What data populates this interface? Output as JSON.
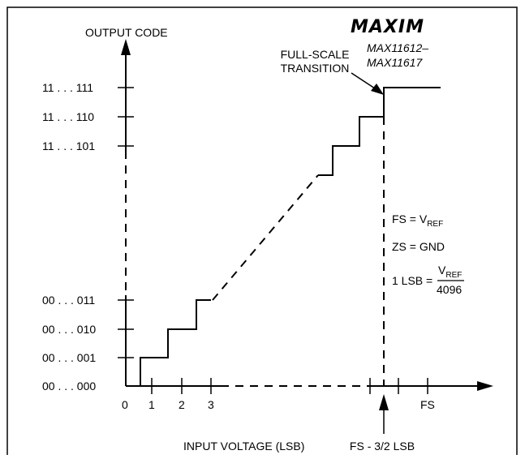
{
  "brand": {
    "logo_text": "MAXIM",
    "part_line1": "MAX11612–",
    "part_line2": "MAX11617"
  },
  "axes": {
    "y_title": "OUTPUT CODE",
    "x_title": "INPUT VOLTAGE (LSB)"
  },
  "y_tick_labels": [
    "11 . . . 111",
    "11 . . . 110",
    "11 . . . 101",
    "00 . . . 011",
    "00 . . . 010",
    "00 . . . 001",
    "00 . . . 000"
  ],
  "x_tick_labels": {
    "origin": "0",
    "one": "1",
    "two": "2",
    "three": "3",
    "fs": "FS"
  },
  "annotations": {
    "fst_line1": "FULL-SCALE",
    "fst_line2": "TRANSITION",
    "fs_minus": "FS - 3/2 LSB"
  },
  "equations": {
    "fs_lhs": "FS = V",
    "fs_sub": "REF",
    "zs": "ZS = GND",
    "lsb_lhs": "1 LSB = ",
    "lsb_num": "V",
    "lsb_num_sub": "REF",
    "lsb_den": "4096"
  },
  "colors": {
    "ink": "#000000",
    "frame": "#000000",
    "background": "#ffffff"
  }
}
